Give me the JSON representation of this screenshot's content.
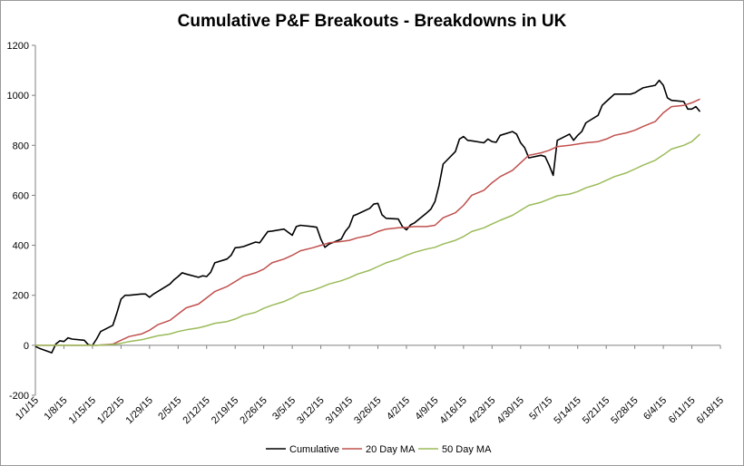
{
  "chart_data": {
    "type": "line",
    "title": "Cumulative P&F Breakouts - Breakdowns in UK",
    "xlabel": "",
    "ylabel": "",
    "ylim": [
      -200,
      1200
    ],
    "yticks": [
      -200,
      0,
      200,
      400,
      600,
      800,
      1000,
      1200
    ],
    "xlim": [
      0,
      168
    ],
    "xticks": [
      {
        "label": "1/1/15",
        "day": 0
      },
      {
        "label": "1/8/15",
        "day": 7
      },
      {
        "label": "1/15/15",
        "day": 14
      },
      {
        "label": "1/22/15",
        "day": 21
      },
      {
        "label": "1/29/15",
        "day": 28
      },
      {
        "label": "2/5/15",
        "day": 35
      },
      {
        "label": "2/12/15",
        "day": 42
      },
      {
        "label": "2/19/15",
        "day": 49
      },
      {
        "label": "2/26/15",
        "day": 56
      },
      {
        "label": "3/5/15",
        "day": 63
      },
      {
        "label": "3/12/15",
        "day": 70
      },
      {
        "label": "3/19/15",
        "day": 77
      },
      {
        "label": "3/26/15",
        "day": 84
      },
      {
        "label": "4/2/15",
        "day": 91
      },
      {
        "label": "4/9/15",
        "day": 98
      },
      {
        "label": "4/16/15",
        "day": 105
      },
      {
        "label": "4/23/15",
        "day": 112
      },
      {
        "label": "4/30/15",
        "day": 119
      },
      {
        "label": "5/7/15",
        "day": 126
      },
      {
        "label": "5/14/15",
        "day": 133
      },
      {
        "label": "5/21/15",
        "day": 140
      },
      {
        "label": "5/28/15",
        "day": 147
      },
      {
        "label": "6/4/15",
        "day": 154
      },
      {
        "label": "6/11/15",
        "day": 161
      },
      {
        "label": "6/18/15",
        "day": 168
      }
    ],
    "legend_position": "bottom",
    "series": [
      {
        "name": "Cumulative",
        "color": "#000000",
        "x": [
          0,
          1,
          4,
          5,
          6,
          7,
          8,
          9,
          12,
          13,
          14,
          15,
          16,
          19,
          20,
          21,
          22,
          23,
          26,
          27,
          28,
          29,
          30,
          33,
          34,
          35,
          36,
          37,
          40,
          41,
          42,
          43,
          44,
          47,
          48,
          49,
          50,
          51,
          54,
          55,
          56,
          57,
          58,
          61,
          62,
          63,
          64,
          65,
          68,
          69,
          70,
          71,
          72,
          75,
          76,
          77,
          78,
          79,
          82,
          83,
          84,
          85,
          86,
          89,
          90,
          91,
          92,
          93,
          96,
          97,
          98,
          99,
          100,
          103,
          104,
          105,
          106,
          107,
          110,
          111,
          112,
          113,
          114,
          117,
          118,
          119,
          120,
          121,
          124,
          125,
          126,
          127,
          128,
          131,
          132,
          133,
          134,
          135,
          138,
          139,
          140,
          141,
          142,
          145,
          146,
          147,
          148,
          149,
          152,
          153,
          154,
          155,
          156,
          159,
          160,
          161,
          162,
          163
        ],
        "y": [
          -5,
          -12,
          -30,
          5,
          18,
          15,
          30,
          25,
          20,
          2,
          0,
          25,
          55,
          80,
          130,
          185,
          200,
          200,
          205,
          205,
          192,
          205,
          215,
          245,
          262,
          275,
          290,
          285,
          272,
          278,
          275,
          292,
          330,
          345,
          360,
          390,
          392,
          395,
          413,
          410,
          433,
          455,
          457,
          465,
          452,
          440,
          475,
          480,
          475,
          472,
          425,
          392,
          405,
          425,
          455,
          475,
          518,
          525,
          548,
          565,
          568,
          522,
          508,
          505,
          475,
          462,
          482,
          490,
          530,
          545,
          575,
          640,
          725,
          775,
          825,
          835,
          820,
          818,
          810,
          825,
          815,
          812,
          840,
          855,
          845,
          810,
          790,
          750,
          760,
          755,
          720,
          680,
          820,
          845,
          820,
          840,
          855,
          890,
          920,
          960,
          975,
          990,
          1005,
          1005,
          1005,
          1010,
          1020,
          1030,
          1040,
          1060,
          1040,
          990,
          980,
          975,
          945,
          945,
          955,
          935
        ]
      },
      {
        "name": "20 Day MA",
        "color": "#c0504d",
        "x": [
          0,
          5,
          10,
          15,
          19,
          21,
          23,
          26,
          28,
          30,
          33,
          35,
          37,
          40,
          42,
          44,
          47,
          49,
          51,
          54,
          56,
          58,
          61,
          63,
          65,
          68,
          70,
          72,
          75,
          77,
          79,
          82,
          84,
          86,
          89,
          91,
          93,
          96,
          98,
          100,
          103,
          105,
          107,
          110,
          112,
          114,
          117,
          119,
          121,
          124,
          126,
          128,
          131,
          133,
          135,
          138,
          140,
          142,
          145,
          147,
          149,
          152,
          154,
          156,
          159,
          161,
          163
        ],
        "y": [
          0,
          0,
          0,
          0,
          5,
          20,
          35,
          45,
          60,
          82,
          100,
          125,
          150,
          165,
          190,
          215,
          235,
          255,
          275,
          290,
          305,
          330,
          345,
          360,
          378,
          390,
          400,
          410,
          415,
          420,
          430,
          440,
          455,
          465,
          470,
          472,
          475,
          475,
          480,
          510,
          530,
          560,
          600,
          620,
          650,
          675,
          700,
          730,
          760,
          770,
          780,
          795,
          800,
          805,
          810,
          815,
          825,
          840,
          850,
          860,
          875,
          895,
          930,
          955,
          960,
          970,
          985
        ]
      },
      {
        "name": "50 Day MA",
        "color": "#9bbb59",
        "x": [
          0,
          5,
          10,
          15,
          19,
          21,
          23,
          26,
          28,
          30,
          33,
          35,
          37,
          40,
          42,
          44,
          47,
          49,
          51,
          54,
          56,
          58,
          61,
          63,
          65,
          68,
          70,
          72,
          75,
          77,
          79,
          82,
          84,
          86,
          89,
          91,
          93,
          96,
          98,
          100,
          103,
          105,
          107,
          110,
          112,
          114,
          117,
          119,
          121,
          124,
          126,
          128,
          131,
          133,
          135,
          138,
          140,
          142,
          145,
          147,
          149,
          152,
          154,
          156,
          159,
          161,
          163
        ],
        "y": [
          0,
          0,
          0,
          0,
          3,
          8,
          15,
          22,
          30,
          38,
          45,
          55,
          62,
          70,
          78,
          88,
          95,
          105,
          120,
          132,
          148,
          160,
          175,
          190,
          208,
          220,
          232,
          245,
          258,
          270,
          285,
          300,
          315,
          330,
          345,
          360,
          372,
          385,
          392,
          405,
          420,
          435,
          455,
          470,
          485,
          500,
          520,
          540,
          560,
          572,
          585,
          598,
          605,
          615,
          630,
          645,
          660,
          675,
          690,
          705,
          720,
          740,
          762,
          785,
          800,
          815,
          845
        ]
      }
    ]
  }
}
